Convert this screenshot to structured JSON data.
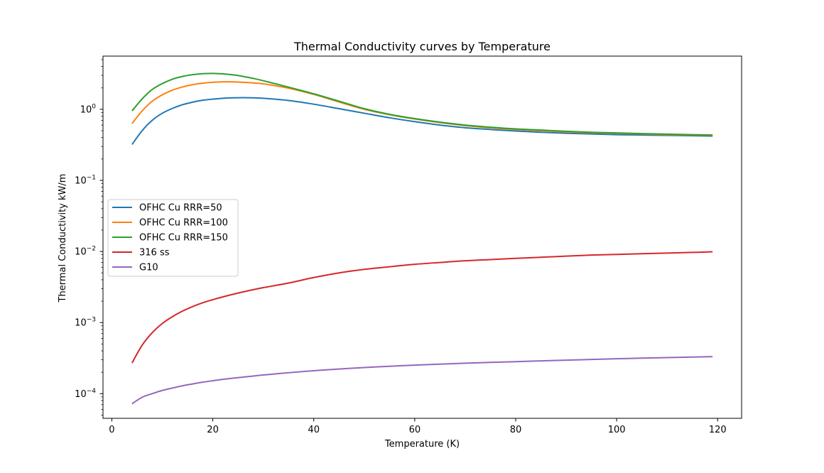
{
  "chart_data": {
    "type": "line",
    "title": "Thermal Conductivity curves by Temperature",
    "xlabel": "Temperature (K)",
    "ylabel": "Thermal Conductivity kW/m",
    "xlim": [
      -1.75,
      124.75
    ],
    "ylim": [
      4.5e-05,
      5.6
    ],
    "yscale": "log",
    "grid": false,
    "legend_position": "center-left",
    "x_ticks": [
      0,
      20,
      40,
      60,
      80,
      100,
      120
    ],
    "x_tick_labels": [
      "0",
      "20",
      "40",
      "60",
      "80",
      "100",
      "120"
    ],
    "y_ticks": [
      0.0001,
      0.001,
      0.01,
      0.1,
      1
    ],
    "y_tick_labels": [
      {
        "base": "10",
        "exp": "−4"
      },
      {
        "base": "10",
        "exp": "−3"
      },
      {
        "base": "10",
        "exp": "−2"
      },
      {
        "base": "10",
        "exp": "−1"
      },
      {
        "base": "10",
        "exp": "0"
      }
    ],
    "x": [
      4,
      6,
      8,
      10,
      12,
      14,
      16,
      18,
      20,
      22,
      24,
      26,
      28,
      30,
      35,
      40,
      45,
      50,
      55,
      60,
      65,
      70,
      75,
      80,
      85,
      90,
      95,
      100,
      105,
      110,
      115,
      119
    ],
    "series": [
      {
        "name": "OFHC Cu RRR=50",
        "color": "#1f77b4",
        "values": [
          0.32,
          0.5,
          0.7,
          0.88,
          1.03,
          1.16,
          1.26,
          1.34,
          1.39,
          1.43,
          1.45,
          1.46,
          1.45,
          1.43,
          1.33,
          1.18,
          1.02,
          0.88,
          0.76,
          0.67,
          0.6,
          0.55,
          0.52,
          0.495,
          0.475,
          0.46,
          0.45,
          0.44,
          0.435,
          0.43,
          0.425,
          0.42
        ]
      },
      {
        "name": "OFHC Cu RRR=100",
        "color": "#ff7f0e",
        "values": [
          0.63,
          0.95,
          1.3,
          1.6,
          1.86,
          2.06,
          2.22,
          2.33,
          2.4,
          2.43,
          2.43,
          2.4,
          2.35,
          2.28,
          1.98,
          1.62,
          1.27,
          1.0,
          0.84,
          0.73,
          0.65,
          0.59,
          0.55,
          0.52,
          0.5,
          0.48,
          0.47,
          0.46,
          0.45,
          0.44,
          0.435,
          0.43
        ]
      },
      {
        "name": "OFHC Cu RRR=150",
        "color": "#2ca02c",
        "values": [
          0.95,
          1.4,
          1.9,
          2.3,
          2.65,
          2.9,
          3.07,
          3.17,
          3.2,
          3.15,
          3.05,
          2.9,
          2.72,
          2.52,
          2.05,
          1.65,
          1.3,
          1.02,
          0.85,
          0.74,
          0.66,
          0.6,
          0.56,
          0.53,
          0.51,
          0.49,
          0.475,
          0.465,
          0.455,
          0.447,
          0.44,
          0.435
        ]
      },
      {
        "name": "316 ss",
        "color": "#d62728",
        "values": [
          0.00027,
          0.00048,
          0.00072,
          0.00097,
          0.00121,
          0.00145,
          0.00168,
          0.0019,
          0.0021,
          0.0023,
          0.0025,
          0.0027,
          0.0029,
          0.0031,
          0.0036,
          0.0043,
          0.005,
          0.0056,
          0.0061,
          0.0066,
          0.007,
          0.0074,
          0.0077,
          0.008,
          0.0083,
          0.0086,
          0.0089,
          0.0091,
          0.0093,
          0.0095,
          0.0097,
          0.0099
        ]
      },
      {
        "name": "G10",
        "color": "#9467bd",
        "values": [
          7.2e-05,
          8.9e-05,
          0.0001,
          0.000111,
          0.00012,
          0.000129,
          0.000137,
          0.000145,
          0.000152,
          0.000159,
          0.000165,
          0.000171,
          0.000177,
          0.000183,
          0.000197,
          0.00021,
          0.000222,
          0.000233,
          0.000243,
          0.000252,
          0.00026,
          0.000268,
          0.000275,
          0.000282,
          0.000289,
          0.000296,
          0.000303,
          0.00031,
          0.000316,
          0.000322,
          0.000327,
          0.000332
        ]
      }
    ]
  }
}
